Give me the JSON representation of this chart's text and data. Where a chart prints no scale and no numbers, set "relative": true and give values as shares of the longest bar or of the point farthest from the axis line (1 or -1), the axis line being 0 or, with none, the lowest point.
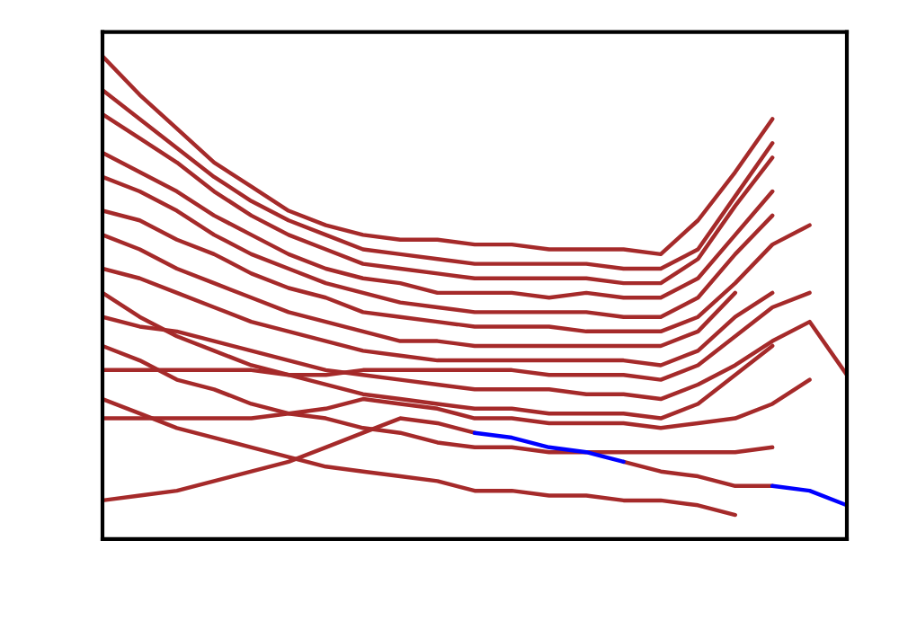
{
  "chart_data": {
    "type": "line",
    "relative": true,
    "categories": [
      null,
      null,
      null,
      null,
      null,
      null,
      null,
      null,
      null,
      null,
      null,
      null,
      null,
      null,
      null,
      null,
      null,
      null,
      null,
      null,
      null
    ],
    "series": [
      {
        "color": "#a52a2a",
        "values": [
          1.0,
          0.92,
          0.85,
          0.78,
          0.73,
          0.68,
          0.65,
          0.63,
          0.62,
          0.62,
          0.61,
          0.61,
          0.6,
          0.6,
          0.6,
          0.59,
          0.66,
          0.76,
          0.87,
          null,
          null
        ]
      },
      {
        "color": "#a52a2a",
        "values": [
          0.93,
          0.87,
          0.81,
          0.75,
          0.7,
          0.66,
          0.63,
          0.6,
          0.59,
          0.58,
          0.57,
          0.57,
          0.57,
          0.57,
          0.56,
          0.56,
          0.6,
          0.71,
          0.82,
          null,
          null
        ]
      },
      {
        "color": "#a52a2a",
        "values": [
          0.88,
          0.83,
          0.78,
          0.72,
          0.67,
          0.63,
          0.6,
          0.57,
          0.56,
          0.55,
          0.54,
          0.54,
          0.54,
          0.54,
          0.53,
          0.53,
          0.58,
          0.69,
          0.79,
          null,
          null
        ]
      },
      {
        "color": "#a52a2a",
        "values": [
          0.8,
          0.76,
          0.72,
          0.67,
          0.63,
          0.59,
          0.56,
          0.54,
          0.53,
          0.51,
          0.51,
          0.51,
          0.5,
          0.51,
          0.5,
          0.5,
          0.54,
          0.63,
          0.72,
          null,
          null
        ]
      },
      {
        "color": "#a52a2a",
        "values": [
          0.75,
          0.72,
          0.68,
          0.63,
          0.59,
          0.56,
          0.53,
          0.51,
          0.49,
          0.48,
          0.47,
          0.47,
          0.47,
          0.47,
          0.46,
          0.46,
          0.5,
          0.59,
          0.67,
          null,
          null
        ]
      },
      {
        "color": "#a52a2a",
        "values": [
          0.68,
          0.66,
          0.62,
          0.59,
          0.55,
          0.52,
          0.5,
          0.47,
          0.46,
          0.45,
          0.44,
          0.44,
          0.44,
          0.43,
          0.43,
          0.43,
          0.46,
          0.53,
          0.61,
          0.65,
          null
        ]
      },
      {
        "color": "#a52a2a",
        "values": [
          0.63,
          0.6,
          0.56,
          0.53,
          0.5,
          0.47,
          0.45,
          0.43,
          0.41,
          0.41,
          0.4,
          0.4,
          0.4,
          0.4,
          0.4,
          0.4,
          0.43,
          0.51,
          null,
          null,
          null
        ]
      },
      {
        "color": "#a52a2a",
        "values": [
          0.56,
          0.54,
          0.51,
          0.48,
          0.45,
          0.43,
          0.41,
          0.39,
          0.38,
          0.37,
          0.37,
          0.37,
          0.37,
          0.37,
          0.37,
          0.36,
          0.39,
          0.46,
          0.51,
          null,
          null
        ]
      },
      {
        "color": "#a52a2a",
        "values": [
          0.51,
          0.46,
          0.42,
          0.39,
          0.36,
          0.34,
          0.32,
          0.3,
          0.29,
          0.28,
          0.27,
          0.27,
          0.26,
          0.26,
          0.26,
          0.25,
          0.28,
          0.34,
          0.4,
          null,
          null
        ]
      },
      {
        "color": "#a52a2a",
        "values": [
          0.46,
          0.44,
          0.43,
          0.41,
          0.39,
          0.37,
          0.35,
          0.34,
          0.33,
          0.32,
          0.31,
          0.31,
          0.31,
          0.3,
          0.3,
          0.29,
          0.32,
          0.36,
          0.41,
          0.45,
          0.34
        ]
      },
      {
        "color": "#a52a2a",
        "values": [
          0.4,
          0.37,
          0.33,
          0.31,
          0.28,
          0.26,
          0.25,
          0.23,
          0.22,
          0.2,
          0.19,
          0.19,
          0.18,
          0.18,
          0.18,
          0.18,
          0.18,
          0.18,
          0.19,
          null,
          null
        ]
      },
      {
        "color": "#a52a2a",
        "values": [
          0.35,
          0.35,
          0.35,
          0.35,
          0.35,
          0.34,
          0.34,
          0.35,
          0.35,
          0.35,
          0.35,
          0.35,
          0.34,
          0.34,
          0.34,
          0.33,
          0.36,
          0.42,
          0.48,
          0.51,
          null
        ]
      },
      {
        "color": "#a52a2a",
        "values": [
          0.29,
          0.26,
          0.23,
          0.21,
          0.19,
          0.17,
          0.15,
          0.14,
          0.13,
          0.12,
          0.1,
          0.1,
          0.09,
          0.09,
          0.08,
          0.08,
          0.07,
          0.05,
          null,
          null,
          null
        ]
      },
      {
        "color": "#a52a2a",
        "values": [
          0.25,
          0.25,
          0.25,
          0.25,
          0.25,
          0.26,
          0.27,
          0.29,
          0.28,
          0.27,
          0.25,
          0.25,
          0.24,
          0.24,
          0.24,
          0.23,
          0.24,
          0.25,
          0.28,
          0.33,
          null
        ]
      },
      {
        "color": "#a52a2a",
        "values": [
          0.08,
          0.09,
          0.1,
          0.12,
          0.14,
          0.16,
          0.19,
          0.22,
          0.25,
          0.24,
          0.22,
          null,
          null,
          null,
          0.16,
          0.14,
          0.13,
          0.11,
          0.11,
          null,
          null
        ]
      },
      {
        "color": "#0000ff",
        "values": [
          null,
          null,
          null,
          null,
          null,
          null,
          null,
          null,
          null,
          null,
          0.22,
          0.21,
          0.19,
          0.18,
          0.16,
          null,
          null,
          null,
          null,
          null,
          null
        ]
      },
      {
        "color": "#0000ff",
        "values": [
          null,
          null,
          null,
          null,
          null,
          null,
          null,
          null,
          null,
          null,
          null,
          null,
          null,
          null,
          null,
          null,
          null,
          null,
          0.11,
          0.1,
          0.07
        ]
      }
    ]
  }
}
